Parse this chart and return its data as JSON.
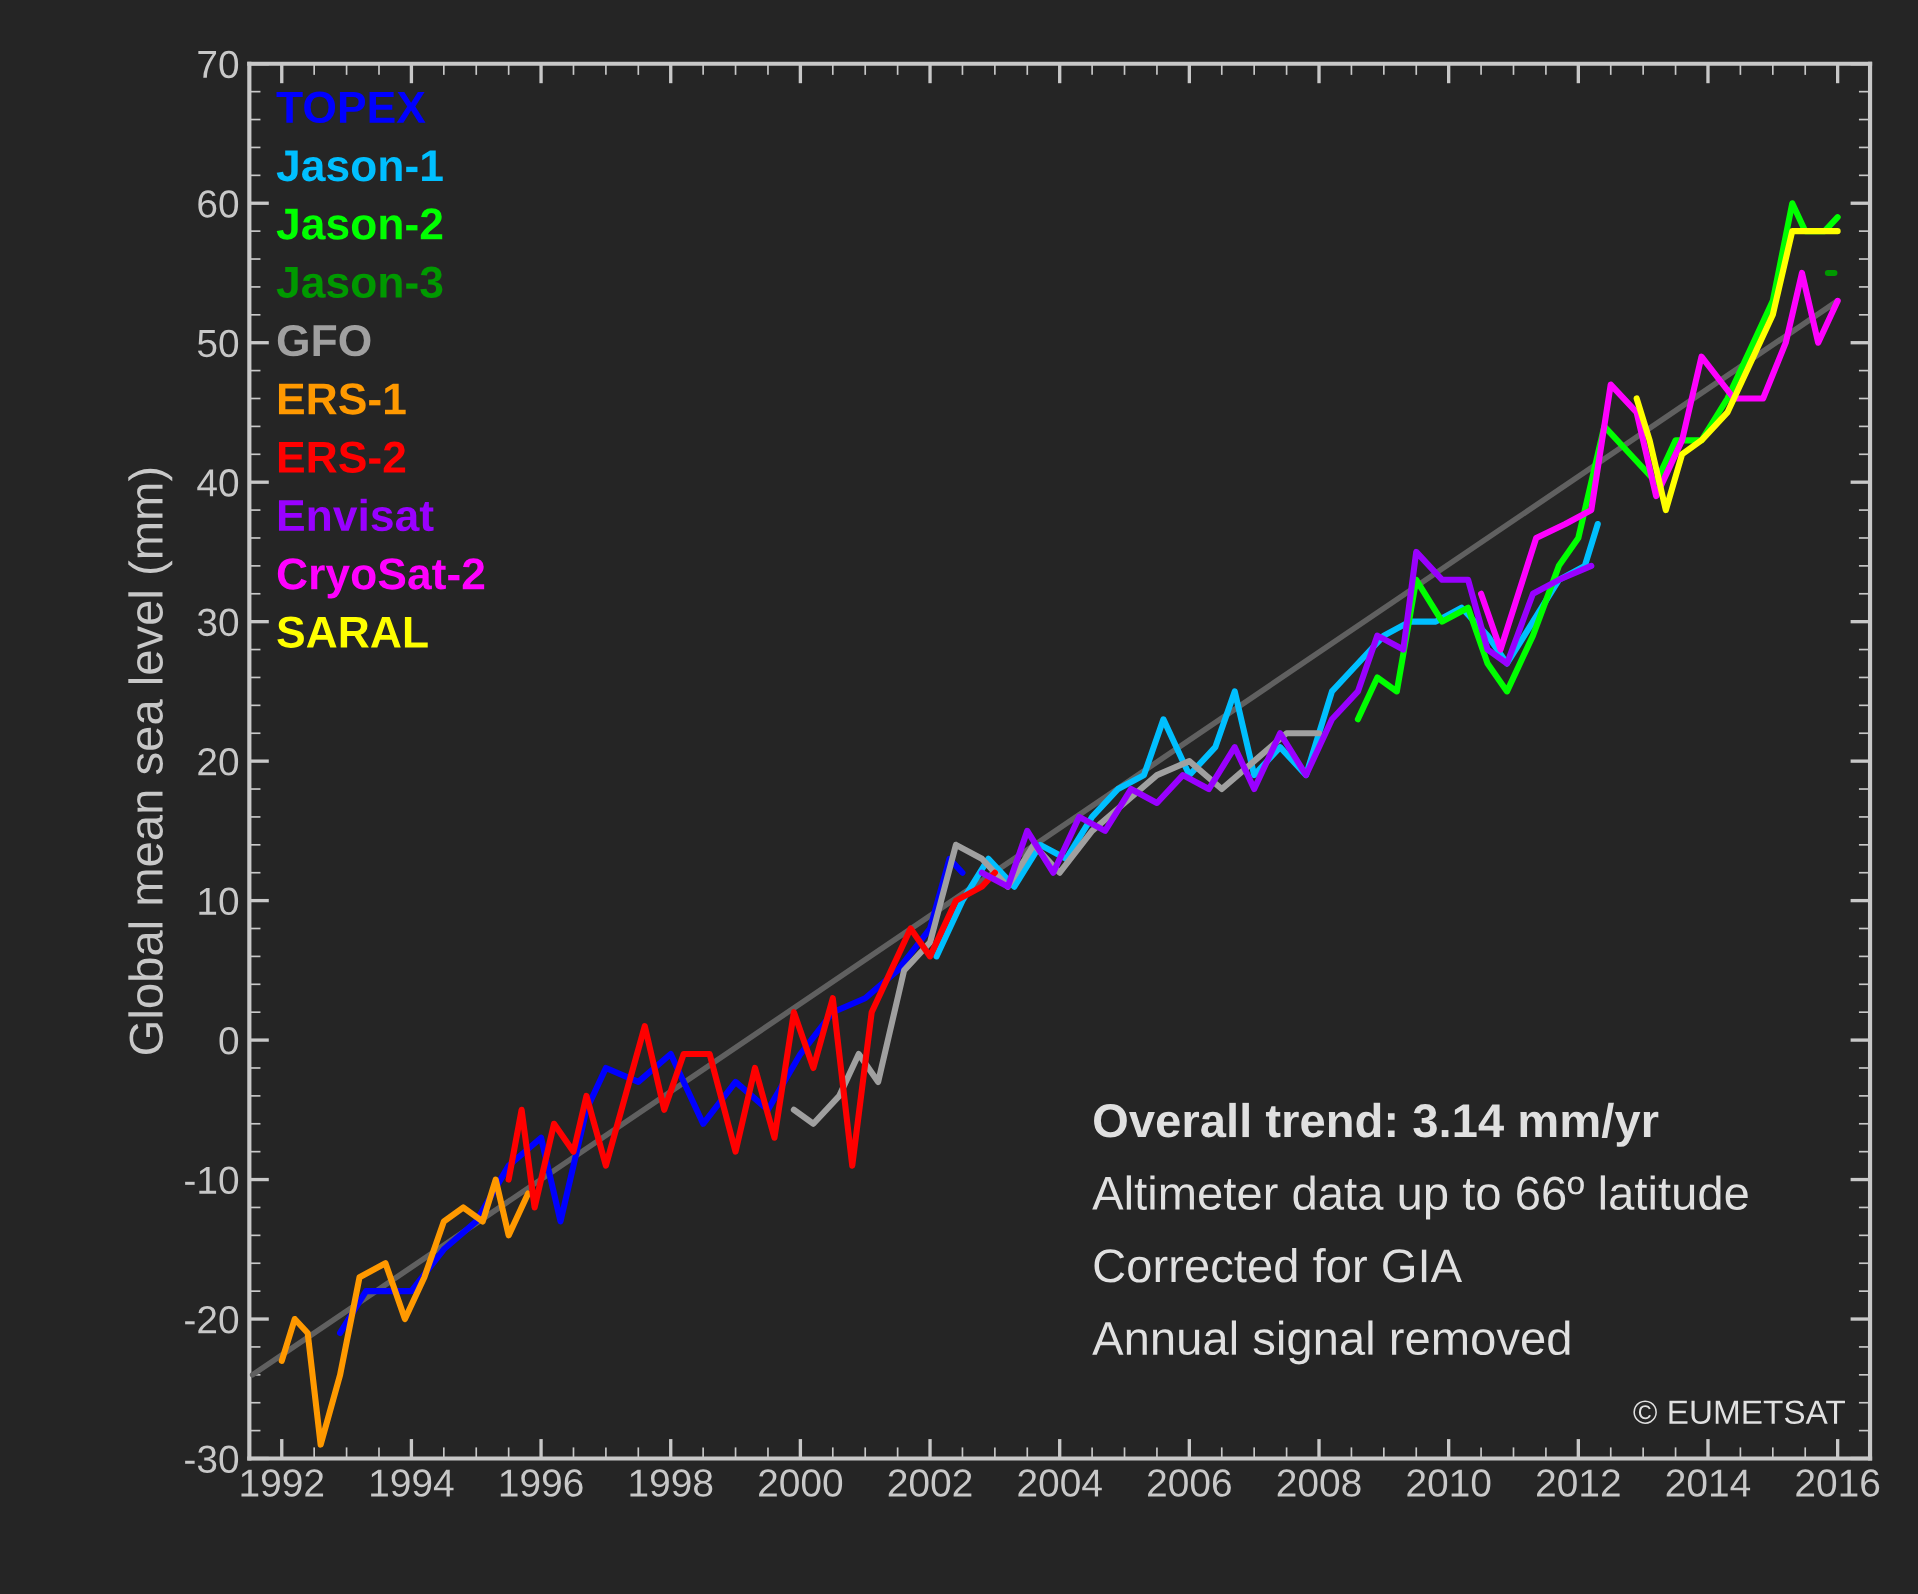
{
  "chart_data": {
    "type": "line",
    "ylabel": "Global mean sea level (mm)",
    "xlim": [
      1991.5,
      2016.5
    ],
    "ylim": [
      -30,
      70
    ],
    "xticks": [
      1992,
      1994,
      1996,
      1998,
      2000,
      2002,
      2004,
      2006,
      2008,
      2010,
      2012,
      2014,
      2016
    ],
    "yticks": [
      -30,
      -20,
      -10,
      0,
      10,
      20,
      30,
      40,
      50,
      60,
      70
    ],
    "grid": false,
    "legend": "top left",
    "marker": "none",
    "line_style": "solid",
    "annotations": [
      "Overall trend: 3.14 mm/yr",
      "Altimeter data up to 66º latitude",
      "Corrected for GIA",
      "Annual signal removed",
      "© EUMETSAT"
    ],
    "series": [
      {
        "color": "#606060",
        "x": [
          1991.55,
          2016.0
        ],
        "values": [
          -24,
          53
        ]
      },
      {
        "name": "TOPEX",
        "color": "#0000ff",
        "x": [
          1992.9,
          1993.3,
          1993.7,
          1994.0,
          1994.5,
          1995.0,
          1995.5,
          1996.0,
          1996.3,
          1996.7,
          1997.0,
          1997.5,
          1998.0,
          1998.5,
          1999.0,
          1999.5,
          2000.0,
          2000.5,
          2001.0,
          2001.5,
          2002.0,
          2002.3,
          2002.5
        ],
        "values": [
          -21,
          -18,
          -18,
          -18,
          -15,
          -13,
          -9,
          -7,
          -13,
          -5,
          -2,
          -3,
          -1,
          -6,
          -3,
          -5,
          -1,
          2,
          3,
          5,
          8,
          13,
          12
        ]
      },
      {
        "name": "Jason-1",
        "color": "#00bfff",
        "x": [
          2002.1,
          2002.5,
          2002.9,
          2003.3,
          2003.7,
          2004.1,
          2004.5,
          2004.9,
          2005.3,
          2005.6,
          2006.0,
          2006.4,
          2006.7,
          2007.0,
          2007.4,
          2007.8,
          2008.2,
          2008.6,
          2009.0,
          2009.4,
          2009.8,
          2010.2,
          2010.6,
          2010.9,
          2011.3,
          2011.7,
          2012.1,
          2012.3
        ],
        "values": [
          6,
          10,
          13,
          11,
          14,
          13,
          16,
          18,
          19,
          23,
          19,
          21,
          25,
          19,
          21,
          19,
          25,
          27,
          29,
          30,
          30,
          31,
          29,
          27,
          30,
          33,
          34,
          37
        ]
      },
      {
        "name": "Jason-2",
        "color": "#00ff00",
        "x": [
          2008.6,
          2008.9,
          2009.2,
          2009.5,
          2009.9,
          2010.3,
          2010.6,
          2010.9,
          2011.3,
          2011.7,
          2012.0,
          2012.4,
          2012.8,
          2013.2,
          2013.5,
          2013.9,
          2014.3,
          2014.7,
          2015.0,
          2015.3,
          2015.5,
          2015.8,
          2016.0
        ],
        "values": [
          23,
          26,
          25,
          33,
          30,
          31,
          27,
          25,
          29,
          34,
          36,
          44,
          42,
          40,
          43,
          43,
          46,
          50,
          53,
          60,
          58,
          58,
          59
        ]
      },
      {
        "name": "Jason-3",
        "color": "#009900",
        "x": [
          2015.85,
          2015.95
        ],
        "values": [
          55,
          55
        ]
      },
      {
        "name": "GFO",
        "color": "#a0a0a0",
        "x": [
          1999.9,
          2000.2,
          2000.6,
          2000.9,
          2001.2,
          2001.6,
          2002.0,
          2002.4,
          2002.8,
          2003.2,
          2003.6,
          2004.0,
          2004.5,
          2005.0,
          2005.5,
          2006.0,
          2006.5,
          2007.0,
          2007.5,
          2008.0
        ],
        "values": [
          -5,
          -6,
          -4,
          -1,
          -3,
          5,
          7,
          14,
          13,
          11,
          14,
          12,
          15,
          17,
          19,
          20,
          18,
          20,
          22,
          22
        ]
      },
      {
        "name": "ERS-1",
        "color": "#ff9900",
        "x": [
          1992.0,
          1992.2,
          1992.4,
          1992.6,
          1992.9,
          1993.2,
          1993.6,
          1993.9,
          1994.2,
          1994.5,
          1994.8,
          1995.1,
          1995.3,
          1995.5,
          1995.8
        ],
        "values": [
          -23,
          -20,
          -21,
          -29,
          -24,
          -17,
          -16,
          -20,
          -17,
          -13,
          -12,
          -13,
          -10,
          -14,
          -11
        ]
      },
      {
        "name": "ERS-2",
        "color": "#ff0000",
        "x": [
          1995.5,
          1995.7,
          1995.9,
          1996.2,
          1996.5,
          1996.7,
          1997.0,
          1997.3,
          1997.6,
          1997.9,
          1998.2,
          1998.6,
          1999.0,
          1999.3,
          1999.6,
          1999.9,
          2000.2,
          2000.5,
          2000.8,
          2001.1,
          2001.4,
          2001.7,
          2002.0,
          2002.4,
          2002.8,
          2003.0
        ],
        "values": [
          -10,
          -5,
          -12,
          -6,
          -8,
          -4,
          -9,
          -4,
          1,
          -5,
          -1,
          -1,
          -8,
          -2,
          -7,
          2,
          -2,
          3,
          -9,
          2,
          5,
          8,
          6,
          10,
          11,
          12
        ]
      },
      {
        "name": "Envisat",
        "color": "#9900ff",
        "x": [
          2002.8,
          2003.2,
          2003.5,
          2003.9,
          2004.3,
          2004.7,
          2005.1,
          2005.5,
          2005.9,
          2006.3,
          2006.7,
          2007.0,
          2007.4,
          2007.8,
          2008.2,
          2008.6,
          2008.9,
          2009.3,
          2009.5,
          2009.9,
          2010.3,
          2010.6,
          2010.9,
          2011.3,
          2011.7,
          2012.2
        ],
        "values": [
          12,
          11,
          15,
          12,
          16,
          15,
          18,
          17,
          19,
          18,
          21,
          18,
          22,
          19,
          23,
          25,
          29,
          28,
          35,
          33,
          33,
          28,
          27,
          32,
          33,
          34
        ]
      },
      {
        "name": "CryoSat-2",
        "color": "#ff00ff",
        "x": [
          2010.5,
          2010.8,
          2011.35,
          2011.8,
          2012.2,
          2012.5,
          2012.9,
          2013.2,
          2013.6,
          2013.9,
          2014.4,
          2014.85,
          2015.2,
          2015.45,
          2015.7,
          2016.0
        ],
        "values": [
          32,
          28,
          36,
          37,
          38,
          47,
          45,
          39,
          43,
          49,
          46,
          46,
          50,
          55,
          50,
          53
        ]
      },
      {
        "name": "SARAL",
        "color": "#ffff00",
        "x": [
          2012.9,
          2013.1,
          2013.35,
          2013.6,
          2013.9,
          2014.3,
          2014.7,
          2015.0,
          2015.3,
          2015.6,
          2016.0
        ],
        "values": [
          46,
          43,
          38,
          42,
          43,
          45,
          49,
          52,
          58,
          58,
          58
        ]
      }
    ]
  }
}
